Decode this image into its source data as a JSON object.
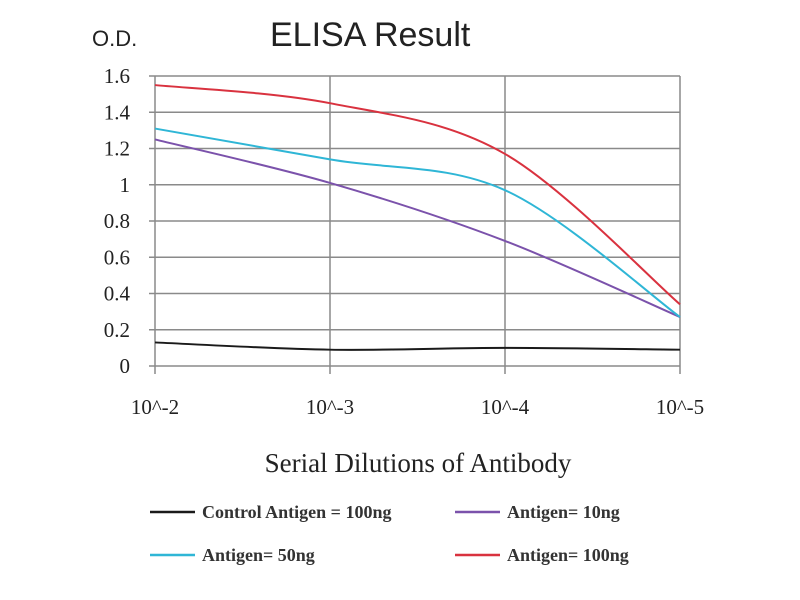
{
  "chart_data": {
    "type": "line",
    "title": "ELISA Result",
    "ylabel": "O.D.",
    "xlabel": "Serial Dilutions of Antibody",
    "categories": [
      "10^-2",
      "10^-3",
      "10^-4",
      "10^-5"
    ],
    "ylim": [
      0,
      1.6
    ],
    "yticks": [
      "0",
      "0.2",
      "0.4",
      "0.6",
      "0.8",
      "1",
      "1.2",
      "1.4",
      "1.6"
    ],
    "grid": true,
    "legend": "bottom",
    "series": [
      {
        "name": "Control Antigen = 100ng",
        "color": "#1a1a1a",
        "values": [
          0.13,
          0.09,
          0.1,
          0.09
        ]
      },
      {
        "name": "Antigen= 10ng",
        "color": "#7b52ab",
        "values": [
          1.25,
          1.01,
          0.69,
          0.27
        ]
      },
      {
        "name": "Antigen= 50ng",
        "color": "#2fb6d6",
        "values": [
          1.31,
          1.14,
          0.97,
          0.27
        ]
      },
      {
        "name": "Antigen= 100ng",
        "color": "#d9323f",
        "values": [
          1.55,
          1.45,
          1.17,
          0.34
        ]
      }
    ]
  }
}
